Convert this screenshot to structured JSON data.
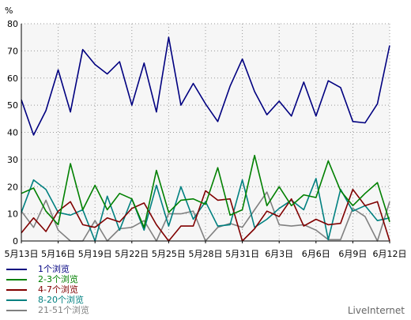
{
  "chart_data": {
    "type": "line",
    "ylabel": "%",
    "ylim": [
      0,
      80
    ],
    "yticks": [
      "0",
      "10",
      "20",
      "30",
      "40",
      "50",
      "60",
      "70",
      "80"
    ],
    "grid": true,
    "legend_position": "bottom-left",
    "xtick_labels": [
      "5月13日",
      "5月16日",
      "5月19日",
      "5月22日",
      "5月25日",
      "5月28日",
      "5月31日",
      "6月3日",
      "6月6日",
      "6月9日",
      "6月12日"
    ],
    "xtick_index": [
      0,
      3,
      6,
      9,
      12,
      15,
      18,
      21,
      24,
      27,
      30
    ],
    "x": [
      "5月13日",
      "5月14日",
      "5月15日",
      "5月16日",
      "5月17日",
      "5月18日",
      "5月19日",
      "5月20日",
      "5月21日",
      "5月22日",
      "5月23日",
      "5月24日",
      "5月25日",
      "5月26日",
      "5月27日",
      "5月28日",
      "5月29日",
      "5月30日",
      "5月31日",
      "6月1日",
      "6月2日",
      "6月3日",
      "6月4日",
      "6月5日",
      "6月6日",
      "6月7日",
      "6月8日",
      "6月9日",
      "6月10日",
      "6月11日",
      "6月12日"
    ],
    "series": [
      {
        "name": "1个浏览",
        "color": "#000080",
        "values": [
          52,
          39,
          48,
          63,
          47.5,
          70.5,
          65,
          61.5,
          66,
          50,
          65.5,
          47.5,
          75,
          50,
          58,
          50.5,
          44,
          57,
          67,
          55,
          46.5,
          51.5,
          46,
          58.5,
          46,
          59,
          56.5,
          44,
          43.5,
          50.5,
          72
        ]
      },
      {
        "name": "2-3个浏览",
        "color": "#008000",
        "values": [
          17.5,
          19.5,
          11,
          6,
          28.5,
          11.5,
          20.5,
          11.5,
          17.5,
          15.5,
          5,
          26,
          10.5,
          15,
          15.5,
          13.5,
          27,
          9.5,
          11.5,
          31.5,
          13,
          20,
          13,
          17,
          16,
          29.5,
          18.5,
          13,
          17.5,
          21.5,
          7
        ]
      },
      {
        "name": "4-7个浏览",
        "color": "#800000",
        "values": [
          3,
          8.5,
          3.5,
          11,
          14.5,
          6,
          5,
          8.5,
          7,
          12,
          14,
          6,
          0,
          5.5,
          5.5,
          18.5,
          15,
          15.5,
          0,
          4.5,
          11,
          9,
          15.5,
          5.5,
          8,
          6,
          6.5,
          19,
          13,
          14.5,
          0
        ]
      },
      {
        "name": "8-20个浏览",
        "color": "#008080",
        "values": [
          10.5,
          22.5,
          19,
          10.5,
          9.5,
          11.5,
          0,
          16.5,
          4,
          15.5,
          4,
          20.5,
          5.5,
          20,
          8,
          14.5,
          5.5,
          6,
          22.5,
          5,
          8,
          12,
          15,
          11.5,
          23,
          0.5,
          19,
          11,
          13,
          7.5,
          8.5
        ]
      },
      {
        "name": "21-51个浏览",
        "color": "#808080",
        "values": [
          11,
          5,
          15,
          4,
          0,
          0,
          7.5,
          0,
          4.5,
          5,
          7.5,
          0,
          10,
          10,
          11,
          0,
          5,
          6.5,
          5,
          11.5,
          18,
          6,
          5.5,
          6,
          4,
          0.5,
          0.5,
          12,
          9,
          0,
          14.5
        ]
      }
    ]
  },
  "credit": "LiveInternet"
}
